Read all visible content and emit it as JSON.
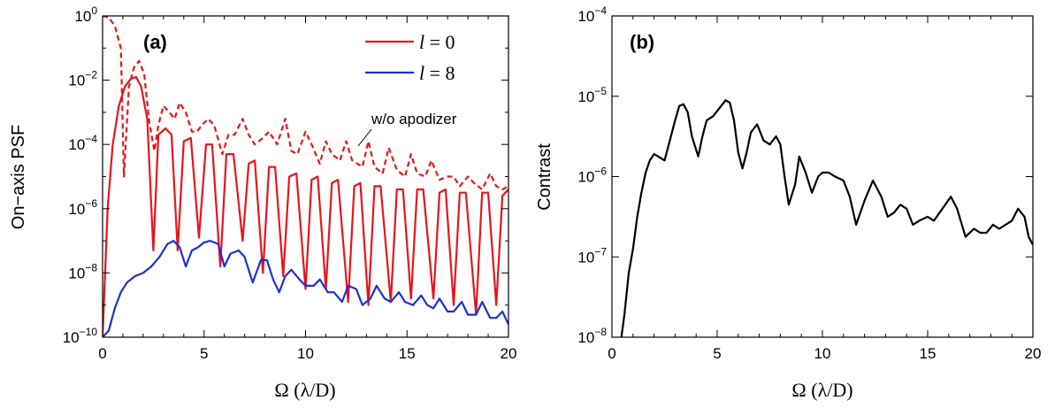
{
  "chart_data": [
    {
      "panel": "(a)",
      "type": "line",
      "xlabel_symbol": "Ω",
      "xlabel_unit": "(λ/D)",
      "ylabel": "On−axis PSF",
      "xlim": [
        0,
        20
      ],
      "ylim_log10": [
        -10,
        0
      ],
      "yscale": "log",
      "x_ticks": [
        "0",
        "5",
        "10",
        "15",
        "20"
      ],
      "y_ticks": [
        {
          "base": "10",
          "exp": "0"
        },
        {
          "base": "10",
          "exp": "−2"
        },
        {
          "base": "10",
          "exp": "−4"
        },
        {
          "base": "10",
          "exp": "−6"
        },
        {
          "base": "10",
          "exp": "−8"
        },
        {
          "base": "10",
          "exp": "−10"
        }
      ],
      "legend": [
        {
          "symbol": "l",
          "text": " = 0",
          "color": "#e8141c"
        },
        {
          "symbol": "l",
          "text": " = 8",
          "color": "#1f2fd6"
        }
      ],
      "legend_position": "top-right",
      "annotation": "w/o apodizer",
      "series": [
        {
          "color": "#e8141c",
          "style": "solid",
          "x": [
            0.0,
            0.25,
            0.5,
            0.8,
            1.1,
            1.4,
            1.65,
            1.9,
            2.2,
            2.5,
            2.75,
            3.1,
            3.4,
            3.7,
            4.0,
            4.35,
            4.75,
            5.1,
            5.4,
            5.8,
            6.1,
            6.45,
            6.9,
            7.2,
            7.5,
            7.9,
            8.2,
            8.5,
            8.9,
            9.2,
            9.55,
            10.0,
            10.3,
            10.6,
            11.0,
            11.3,
            11.6,
            12.1,
            12.4,
            12.7,
            13.1,
            13.4,
            13.7,
            14.2,
            14.5,
            14.8,
            15.2,
            15.5,
            15.8,
            16.3,
            16.6,
            16.9,
            17.3,
            17.6,
            17.9,
            18.4,
            18.7,
            19.0,
            19.4,
            19.7,
            20.0
          ],
          "y_log10": [
            -10,
            -6.0,
            -4.0,
            -2.8,
            -2.2,
            -1.95,
            -1.9,
            -2.2,
            -3.2,
            -7.3,
            -3.7,
            -3.5,
            -3.7,
            -7.3,
            -3.9,
            -3.8,
            -6.9,
            -4.0,
            -4.0,
            -7.8,
            -4.3,
            -4.3,
            -7.0,
            -4.6,
            -4.5,
            -8.0,
            -4.7,
            -4.7,
            -8.1,
            -5.0,
            -4.9,
            -8.5,
            -5.1,
            -5.0,
            -8.5,
            -5.2,
            -5.1,
            -8.9,
            -5.3,
            -5.2,
            -9.0,
            -5.3,
            -5.3,
            -8.9,
            -5.4,
            -5.4,
            -8.8,
            -5.4,
            -5.4,
            -8.8,
            -5.5,
            -5.4,
            -9.0,
            -5.5,
            -5.5,
            -9.3,
            -5.5,
            -5.5,
            -9.0,
            -5.6,
            -5.4
          ]
        },
        {
          "color": "#e8141c",
          "style": "dashed",
          "x": [
            0.0,
            0.3,
            0.6,
            0.9,
            1.05,
            1.3,
            1.55,
            1.8,
            2.05,
            2.3,
            2.55,
            2.75,
            3.0,
            3.3,
            3.55,
            3.8,
            4.1,
            4.4,
            4.65,
            4.9,
            5.2,
            5.5,
            5.9,
            6.2,
            6.5,
            6.9,
            7.2,
            7.5,
            7.9,
            8.2,
            8.6,
            9.0,
            9.3,
            9.6,
            10.0,
            10.3,
            10.7,
            11.0,
            11.3,
            11.7,
            12.0,
            12.3,
            12.8,
            13.1,
            13.4,
            13.8,
            14.1,
            14.5,
            14.9,
            15.2,
            15.5,
            15.9,
            16.2,
            16.6,
            17.0,
            17.3,
            17.6,
            18.0,
            18.3,
            18.7,
            19.1,
            19.4,
            19.7,
            20.0
          ],
          "y_log10": [
            0.0,
            -0.05,
            -0.3,
            -1.0,
            -5.0,
            -2.2,
            -1.6,
            -1.4,
            -1.8,
            -3.3,
            -4.2,
            -3.4,
            -2.8,
            -3.0,
            -3.2,
            -2.7,
            -3.0,
            -3.6,
            -3.6,
            -3.4,
            -3.2,
            -3.4,
            -4.3,
            -3.7,
            -3.7,
            -3.2,
            -3.7,
            -4.0,
            -3.8,
            -3.6,
            -4.0,
            -3.2,
            -4.2,
            -4.3,
            -3.6,
            -4.0,
            -4.6,
            -3.9,
            -4.3,
            -4.5,
            -3.9,
            -4.5,
            -4.7,
            -3.9,
            -4.7,
            -4.9,
            -4.1,
            -4.8,
            -5.0,
            -4.3,
            -4.9,
            -5.0,
            -4.5,
            -5.1,
            -5.0,
            -5.0,
            -5.3,
            -5.0,
            -5.2,
            -5.4,
            -4.9,
            -5.3,
            -5.4,
            -5.3
          ]
        },
        {
          "color": "#1f2fd6",
          "style": "solid",
          "x": [
            0.0,
            0.3,
            0.6,
            0.9,
            1.2,
            1.6,
            2.0,
            2.4,
            2.8,
            3.2,
            3.5,
            3.8,
            4.1,
            4.4,
            4.7,
            5.0,
            5.3,
            5.7,
            6.0,
            6.3,
            6.7,
            7.0,
            7.4,
            7.8,
            8.1,
            8.4,
            8.7,
            9.0,
            9.3,
            9.7,
            10.0,
            10.4,
            10.7,
            11.1,
            11.4,
            11.8,
            12.1,
            12.5,
            12.8,
            13.2,
            13.5,
            13.9,
            14.2,
            14.6,
            14.9,
            15.3,
            15.7,
            16.0,
            16.3,
            16.6,
            17.0,
            17.3,
            17.7,
            18.0,
            18.4,
            18.7,
            19.1,
            19.4,
            19.7,
            20.0
          ],
          "y_log10": [
            -10,
            -9.8,
            -9.1,
            -8.6,
            -8.3,
            -8.1,
            -8.0,
            -7.8,
            -7.5,
            -7.1,
            -7.0,
            -7.2,
            -7.8,
            -7.3,
            -7.2,
            -7.05,
            -7.0,
            -7.1,
            -7.8,
            -7.4,
            -7.3,
            -7.5,
            -8.3,
            -7.6,
            -7.6,
            -8.2,
            -8.6,
            -8.1,
            -7.9,
            -8.2,
            -8.4,
            -8.4,
            -8.2,
            -8.6,
            -8.6,
            -8.9,
            -8.4,
            -8.5,
            -9.0,
            -8.8,
            -8.4,
            -8.8,
            -8.9,
            -8.6,
            -8.9,
            -9.0,
            -8.7,
            -9.0,
            -9.1,
            -8.8,
            -9.2,
            -9.2,
            -8.9,
            -9.3,
            -9.3,
            -8.9,
            -9.4,
            -9.4,
            -9.2,
            -9.6
          ]
        }
      ]
    },
    {
      "panel": "(b)",
      "type": "line",
      "xlabel_symbol": "Ω",
      "xlabel_unit": "(λ/D)",
      "ylabel": "Contrast",
      "xlim": [
        0,
        20
      ],
      "ylim_log10": [
        -8,
        -4
      ],
      "yscale": "log",
      "x_ticks": [
        "0",
        "5",
        "10",
        "15",
        "20"
      ],
      "y_ticks": [
        {
          "base": "10",
          "exp": "−4"
        },
        {
          "base": "10",
          "exp": "−5"
        },
        {
          "base": "10",
          "exp": "−6"
        },
        {
          "base": "10",
          "exp": "−7"
        },
        {
          "base": "10",
          "exp": "−8"
        }
      ],
      "series": [
        {
          "color": "#000000",
          "style": "solid",
          "x": [
            0.45,
            0.6,
            0.8,
            1.0,
            1.2,
            1.4,
            1.6,
            1.8,
            2.0,
            2.2,
            2.5,
            2.7,
            3.0,
            3.2,
            3.4,
            3.6,
            3.8,
            4.1,
            4.3,
            4.5,
            4.8,
            5.1,
            5.4,
            5.6,
            5.8,
            6.0,
            6.2,
            6.4,
            6.6,
            6.9,
            7.2,
            7.5,
            7.8,
            8.0,
            8.2,
            8.4,
            8.7,
            8.9,
            9.2,
            9.5,
            9.8,
            10.0,
            10.3,
            10.6,
            11.0,
            11.3,
            11.6,
            12.0,
            12.4,
            12.8,
            13.1,
            13.4,
            13.7,
            14.0,
            14.3,
            14.6,
            15.0,
            15.3,
            15.7,
            16.1,
            16.4,
            16.8,
            17.2,
            17.5,
            17.8,
            18.1,
            18.4,
            18.7,
            19.0,
            19.3,
            19.6,
            19.8,
            20.0
          ],
          "y_log10": [
            -8.0,
            -7.7,
            -7.2,
            -6.9,
            -6.5,
            -6.2,
            -5.95,
            -5.8,
            -5.72,
            -5.75,
            -5.8,
            -5.6,
            -5.3,
            -5.12,
            -5.1,
            -5.2,
            -5.5,
            -5.75,
            -5.5,
            -5.3,
            -5.25,
            -5.15,
            -5.05,
            -5.08,
            -5.3,
            -5.7,
            -5.9,
            -5.7,
            -5.45,
            -5.35,
            -5.55,
            -5.6,
            -5.5,
            -5.6,
            -6.0,
            -6.35,
            -6.1,
            -5.75,
            -5.95,
            -6.2,
            -6.0,
            -5.95,
            -5.95,
            -6.0,
            -6.05,
            -6.25,
            -6.6,
            -6.3,
            -6.05,
            -6.25,
            -6.5,
            -6.45,
            -6.35,
            -6.4,
            -6.6,
            -6.55,
            -6.5,
            -6.55,
            -6.4,
            -6.25,
            -6.4,
            -6.75,
            -6.65,
            -6.7,
            -6.7,
            -6.6,
            -6.65,
            -6.6,
            -6.55,
            -6.4,
            -6.5,
            -6.75,
            -6.85
          ]
        }
      ]
    }
  ]
}
